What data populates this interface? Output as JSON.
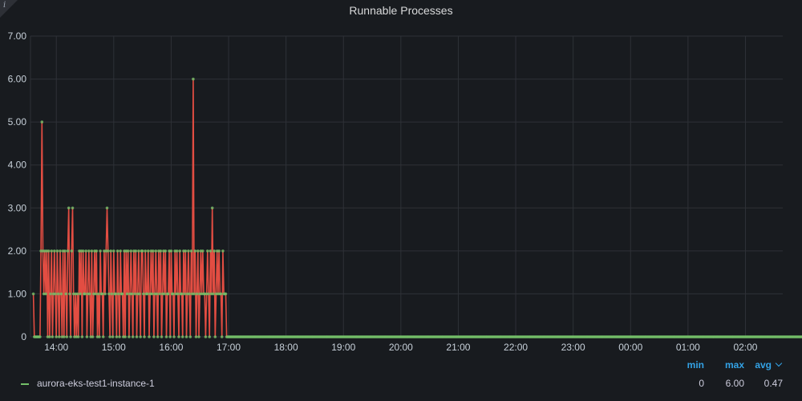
{
  "panel": {
    "title": "Runnable Processes",
    "info_icon": "info-icon"
  },
  "chart_data": {
    "type": "line",
    "title": "Runnable Processes",
    "xlabel": "",
    "ylabel": "",
    "x_ticks": [
      "14:00",
      "15:00",
      "16:00",
      "17:00",
      "18:00",
      "19:00",
      "20:00",
      "21:00",
      "22:00",
      "23:00",
      "00:00",
      "01:00",
      "02:00"
    ],
    "y_ticks": [
      "0",
      "1.00",
      "2.00",
      "3.00",
      "4.00",
      "5.00",
      "6.00",
      "7.00"
    ],
    "ylim": [
      0,
      7
    ],
    "xlim_hours": [
      13.55,
      26.65
    ],
    "grid": true,
    "legend_position": "bottom",
    "series": [
      {
        "name": "aurora-eks-test1-instance-1",
        "color": "#e24d42",
        "point_color": "#73bf69",
        "interval_minutes": 1,
        "start": "13:36",
        "values": [
          1,
          0,
          0,
          0,
          0,
          0,
          0,
          0,
          2,
          5,
          2,
          1,
          2,
          1,
          2,
          0,
          2,
          0,
          1,
          2,
          0,
          1,
          2,
          1,
          0,
          2,
          1,
          0,
          2,
          1,
          0,
          2,
          0,
          2,
          1,
          0,
          2,
          3,
          1,
          0,
          2,
          3,
          1,
          0,
          1,
          0,
          1,
          0,
          2,
          1,
          2,
          0,
          2,
          1,
          1,
          2,
          0,
          1,
          2,
          1,
          0,
          2,
          0,
          1,
          2,
          1,
          2,
          0,
          1,
          0,
          2,
          1,
          1,
          0,
          2,
          1,
          2,
          3,
          2,
          1,
          0,
          2,
          1,
          0,
          2,
          1,
          1,
          0,
          2,
          1,
          0,
          2,
          1,
          1,
          0,
          2,
          0,
          2,
          1,
          2,
          0,
          1,
          2,
          1,
          0,
          2,
          1,
          2,
          0,
          1,
          2,
          1,
          0,
          2,
          2,
          1,
          0,
          2,
          1,
          1,
          2,
          0,
          1,
          2,
          1,
          2,
          0,
          1,
          2,
          1,
          0,
          2,
          1,
          2,
          0,
          1,
          2,
          1,
          2,
          0,
          1,
          1,
          2,
          0,
          2,
          1,
          1,
          0,
          2,
          1,
          2,
          1,
          0,
          2,
          1,
          1,
          0,
          2,
          1,
          2,
          0,
          1,
          2,
          1,
          0,
          2,
          1,
          6,
          1,
          2,
          0,
          1,
          2,
          0,
          1,
          2,
          1,
          2,
          1,
          1,
          0,
          1,
          2,
          1,
          0,
          2,
          1,
          3,
          1,
          2,
          0,
          1,
          2,
          1,
          2,
          1,
          1,
          0,
          2,
          1,
          1,
          1,
          0,
          0,
          0,
          0,
          0,
          0,
          0,
          0,
          0,
          0,
          0,
          0,
          0,
          0,
          0,
          0,
          0,
          0,
          0,
          0,
          0,
          0,
          0,
          0,
          0,
          0,
          0,
          0,
          0,
          0,
          0,
          0,
          0,
          0,
          0,
          0,
          0,
          0,
          0,
          0,
          0,
          0,
          0,
          0,
          0,
          0,
          0,
          0,
          0,
          0,
          0,
          0,
          0,
          0,
          0,
          0,
          0,
          0,
          0,
          0,
          0,
          0,
          0,
          0,
          0,
          0,
          0,
          0,
          0,
          0,
          0,
          0,
          0,
          0,
          0,
          0,
          0,
          0,
          0,
          0,
          0,
          0,
          0,
          0,
          0,
          0,
          0,
          0,
          0,
          0,
          0,
          0,
          0,
          0,
          0,
          0,
          0,
          0,
          0,
          0,
          0,
          0,
          0,
          0,
          0,
          0,
          0,
          0,
          0,
          0,
          0,
          0,
          0,
          0,
          0,
          0,
          0,
          0,
          0,
          0,
          0,
          0,
          0,
          0,
          0,
          0,
          0,
          0,
          0,
          0,
          0,
          0,
          0,
          0,
          0,
          0,
          0,
          0,
          0,
          0,
          0,
          0,
          0,
          0,
          0,
          0,
          0,
          0,
          0,
          0,
          0,
          0,
          0,
          0,
          0,
          0,
          0,
          0,
          0,
          0,
          0,
          0,
          0,
          0,
          0,
          0,
          0,
          0,
          0,
          0,
          0,
          0,
          0,
          0,
          0,
          0,
          0,
          0,
          0,
          0,
          0,
          0,
          0,
          0,
          0,
          0,
          0,
          0,
          0,
          0,
          0,
          0,
          0,
          0,
          0,
          0,
          0,
          0,
          0,
          0,
          0,
          0,
          0,
          0,
          0,
          0,
          0,
          0,
          0,
          0,
          0,
          0,
          0,
          0,
          0,
          0,
          0,
          0,
          0,
          0,
          0,
          0,
          0,
          0,
          0,
          0,
          0,
          0,
          0,
          0,
          0,
          0,
          0,
          0,
          0,
          0,
          0,
          0,
          0,
          0,
          0,
          0,
          0,
          0,
          0,
          0,
          0,
          0,
          0,
          0,
          0,
          0,
          0,
          0,
          0,
          0,
          0,
          0,
          0,
          0,
          0,
          0,
          0,
          0,
          0,
          0,
          0,
          0,
          0,
          0,
          0,
          0,
          0,
          0,
          0,
          0,
          0,
          0,
          0,
          0,
          0,
          0,
          0,
          0,
          0,
          0,
          0,
          0,
          0,
          0,
          0,
          0,
          0,
          0,
          0,
          0,
          0,
          0,
          0,
          0,
          0,
          0,
          0,
          0,
          0,
          0,
          0,
          0,
          0,
          0,
          0,
          0,
          0,
          0,
          0,
          0,
          0,
          0,
          0,
          0,
          0,
          0,
          0,
          0,
          0,
          0,
          0,
          0,
          0,
          0,
          0,
          0,
          0,
          0,
          0,
          0,
          0,
          0,
          0,
          0,
          0,
          0,
          0,
          0,
          0,
          0,
          0,
          0,
          0,
          0,
          0,
          0,
          0,
          0,
          0,
          0,
          0,
          0,
          0,
          0,
          0,
          0,
          0,
          0,
          0,
          0,
          0,
          0,
          0,
          0,
          0,
          0,
          0,
          0,
          0,
          0,
          0,
          0,
          0,
          0,
          0,
          0,
          0,
          0,
          0,
          0,
          0,
          0,
          0,
          0,
          0,
          0,
          0,
          0,
          0,
          0,
          0,
          0,
          0,
          0,
          0,
          0,
          0,
          0,
          0,
          0,
          0,
          0,
          0,
          0,
          0,
          0,
          0,
          0,
          0,
          0,
          0,
          0,
          0,
          0,
          0,
          0,
          0,
          0,
          0,
          0,
          0,
          0,
          0,
          0,
          0,
          0,
          0,
          0,
          0,
          0,
          0,
          0,
          0,
          0,
          0,
          0,
          0,
          0,
          0,
          0,
          0,
          0,
          0,
          0,
          0,
          0,
          0,
          0,
          0,
          0,
          0,
          0,
          0,
          0,
          0,
          0,
          0,
          0,
          0,
          0,
          0,
          0,
          0,
          0,
          0,
          0,
          0,
          0,
          0,
          0,
          0,
          0,
          0,
          0,
          0,
          0,
          0,
          0,
          0,
          0,
          0,
          0,
          0,
          0,
          0,
          0,
          0,
          0,
          0,
          0,
          0,
          0,
          0,
          0,
          0,
          0,
          0,
          0,
          0,
          0,
          0,
          0,
          0,
          0,
          0,
          0,
          0,
          0,
          0,
          0,
          0,
          0,
          0,
          0,
          0,
          0,
          0,
          0,
          0,
          0,
          0,
          0,
          0,
          0,
          0,
          0,
          0,
          0,
          0,
          0,
          0,
          0,
          0,
          0,
          0,
          0,
          0,
          0,
          0,
          0,
          0,
          0,
          0,
          0,
          0,
          0,
          0,
          0,
          0,
          0,
          0,
          0,
          0,
          0,
          0,
          0,
          0,
          0,
          0,
          0,
          0,
          0,
          0,
          0,
          0,
          0,
          0,
          0,
          0,
          0,
          0,
          0,
          0,
          0,
          0,
          0,
          0,
          0,
          0,
          0,
          0,
          0,
          0,
          0,
          0,
          0,
          0,
          0,
          0,
          0,
          0,
          0,
          0,
          0,
          0,
          0,
          0,
          0,
          0,
          0,
          0,
          0,
          0,
          0,
          0,
          0,
          0,
          0,
          0,
          0,
          0,
          0,
          0,
          0,
          0,
          0,
          0,
          0,
          0,
          0,
          0,
          0,
          0,
          0,
          0,
          0,
          0,
          0,
          0,
          0,
          0,
          0,
          0,
          0,
          0,
          0,
          0
        ]
      }
    ]
  },
  "legend": {
    "headers": {
      "min": "min",
      "max": "max",
      "avg": "avg"
    },
    "rows": [
      {
        "name": "aurora-eks-test1-instance-1",
        "min": "0",
        "max": "6.00",
        "avg": "0.47",
        "color": "#73bf69"
      }
    ]
  }
}
